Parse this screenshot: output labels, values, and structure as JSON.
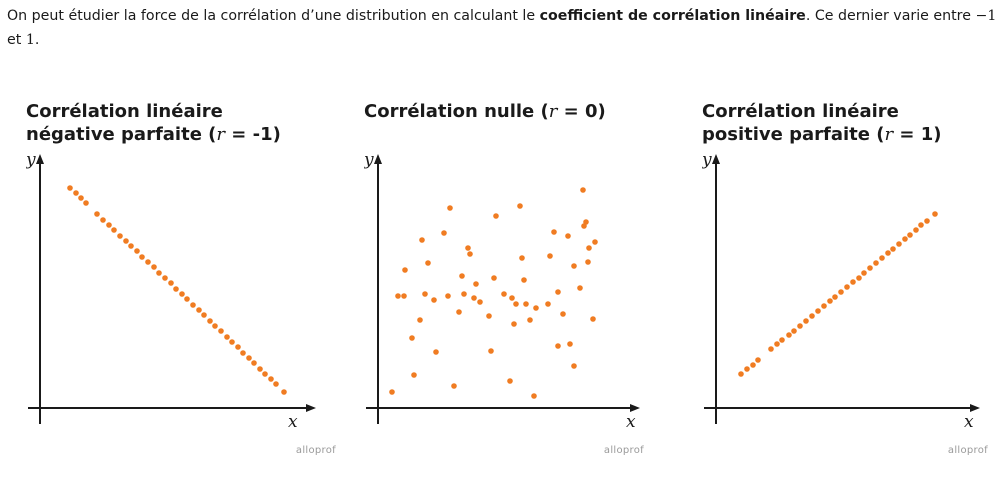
{
  "intro": {
    "part1": "On peut étudier la force de la corrélation d’une distribution en calculant le ",
    "bold": "coefficient de corrélation linéaire",
    "part2": ". Ce dernier varie entre ",
    "min": "−1",
    "connector": " et ",
    "max": "1",
    "end": "."
  },
  "colors": {
    "points": "#f07c22",
    "axes": "#1a1a1a"
  },
  "watermark": "alloprof",
  "chart_data": [
    {
      "type": "scatter",
      "title_line1": "Corrélation linéaire",
      "title_line2": "négative parfaite",
      "r_symbol": "r",
      "r_value": "= -1",
      "xlabel": "x",
      "ylabel": "y",
      "xlim": [
        0,
        270
      ],
      "ylim": [
        0,
        230
      ],
      "grid": false,
      "points": [
        [
          30,
          220
        ],
        [
          36,
          215
        ],
        [
          41,
          210
        ],
        [
          46,
          205
        ],
        [
          57,
          194
        ],
        [
          63,
          188
        ],
        [
          69,
          183
        ],
        [
          74,
          178
        ],
        [
          80,
          172
        ],
        [
          86,
          167
        ],
        [
          91,
          162
        ],
        [
          97,
          157
        ],
        [
          102,
          151
        ],
        [
          108,
          146
        ],
        [
          114,
          141
        ],
        [
          119,
          135
        ],
        [
          125,
          130
        ],
        [
          131,
          125
        ],
        [
          136,
          119
        ],
        [
          142,
          114
        ],
        [
          147,
          109
        ],
        [
          153,
          103
        ],
        [
          159,
          98
        ],
        [
          164,
          93
        ],
        [
          170,
          87
        ],
        [
          175,
          82
        ],
        [
          181,
          77
        ],
        [
          187,
          71
        ],
        [
          192,
          66
        ],
        [
          198,
          61
        ],
        [
          203,
          55
        ],
        [
          209,
          50
        ],
        [
          214,
          45
        ],
        [
          220,
          39
        ],
        [
          225,
          34
        ],
        [
          231,
          29
        ],
        [
          236,
          24
        ],
        [
          244,
          16
        ]
      ]
    },
    {
      "type": "scatter",
      "title_line1": "Corrélation nulle",
      "title_line2": "",
      "r_symbol": "r",
      "r_value": "= 0)",
      "xlabel": "x",
      "ylabel": "y",
      "xlim": [
        0,
        270
      ],
      "ylim": [
        0,
        230
      ],
      "grid": false,
      "points": [
        [
          14,
          16
        ],
        [
          20,
          112
        ],
        [
          26,
          112
        ],
        [
          27,
          138
        ],
        [
          34,
          70
        ],
        [
          36,
          33
        ],
        [
          42,
          88
        ],
        [
          44,
          168
        ],
        [
          47,
          114
        ],
        [
          50,
          145
        ],
        [
          56,
          108
        ],
        [
          58,
          56
        ],
        [
          66,
          175
        ],
        [
          70,
          112
        ],
        [
          72,
          200
        ],
        [
          76,
          22
        ],
        [
          81,
          96
        ],
        [
          84,
          132
        ],
        [
          86,
          114
        ],
        [
          90,
          160
        ],
        [
          92,
          154
        ],
        [
          96,
          110
        ],
        [
          98,
          124
        ],
        [
          102,
          106
        ],
        [
          111,
          92
        ],
        [
          113,
          57
        ],
        [
          116,
          130
        ],
        [
          118,
          192
        ],
        [
          126,
          114
        ],
        [
          132,
          27
        ],
        [
          134,
          110
        ],
        [
          136,
          84
        ],
        [
          138,
          104
        ],
        [
          142,
          202
        ],
        [
          144,
          150
        ],
        [
          146,
          128
        ],
        [
          148,
          104
        ],
        [
          152,
          88
        ],
        [
          156,
          12
        ],
        [
          158,
          100
        ],
        [
          170,
          104
        ],
        [
          172,
          152
        ],
        [
          176,
          176
        ],
        [
          180,
          116
        ],
        [
          180,
          62
        ],
        [
          185,
          94
        ],
        [
          190,
          172
        ],
        [
          192,
          64
        ],
        [
          196,
          142
        ],
        [
          196,
          42
        ],
        [
          202,
          120
        ],
        [
          205,
          218
        ],
        [
          206,
          182
        ],
        [
          208,
          186
        ],
        [
          210,
          146
        ],
        [
          211,
          160
        ],
        [
          215,
          89
        ],
        [
          217,
          166
        ]
      ]
    },
    {
      "type": "scatter",
      "title_line1": "Corrélation linéaire",
      "title_line2": "positive parfaite",
      "r_symbol": "r",
      "r_value": "= 1)",
      "xlabel": "x",
      "ylabel": "y",
      "xlim": [
        0,
        270
      ],
      "ylim": [
        0,
        230
      ],
      "grid": false,
      "points": [
        [
          25,
          34
        ],
        [
          31,
          39
        ],
        [
          37,
          43
        ],
        [
          42,
          48
        ],
        [
          55,
          59
        ],
        [
          61,
          64
        ],
        [
          66,
          68
        ],
        [
          73,
          73
        ],
        [
          78,
          77
        ],
        [
          84,
          82
        ],
        [
          90,
          87
        ],
        [
          96,
          92
        ],
        [
          102,
          97
        ],
        [
          108,
          102
        ],
        [
          114,
          107
        ],
        [
          119,
          111
        ],
        [
          125,
          116
        ],
        [
          131,
          121
        ],
        [
          137,
          126
        ],
        [
          143,
          130
        ],
        [
          148,
          135
        ],
        [
          154,
          140
        ],
        [
          160,
          145
        ],
        [
          166,
          150
        ],
        [
          172,
          155
        ],
        [
          177,
          159
        ],
        [
          183,
          164
        ],
        [
          189,
          169
        ],
        [
          194,
          173
        ],
        [
          200,
          178
        ],
        [
          205,
          183
        ],
        [
          211,
          187
        ],
        [
          219,
          194
        ]
      ]
    }
  ]
}
